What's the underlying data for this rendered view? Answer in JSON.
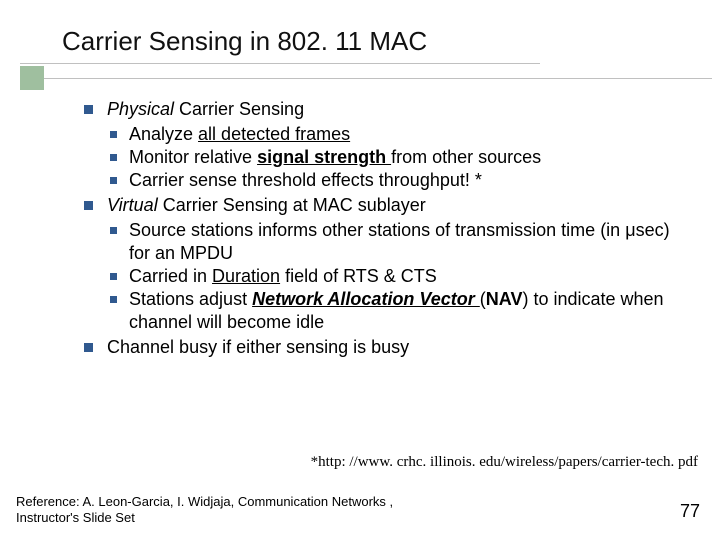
{
  "colors": {
    "accent_block": "#9fbf9f",
    "bullet": "#30598f",
    "rule": "#c0c0c0",
    "text": "#000000",
    "background": "#ffffff"
  },
  "title": "Carrier Sensing in 802. 11 MAC",
  "items": {
    "a": {
      "italic": "Physical",
      "rest": " Carrier Sensing"
    },
    "a1": {
      "pre": "Analyze ",
      "u": "all detected frames"
    },
    "a2": {
      "pre": "Monitor relative ",
      "bu": "signal strength ",
      "post": "from other sources"
    },
    "a3": "Carrier sense threshold effects throughput! *",
    "b": {
      "italic": "Virtual",
      "rest": " Carrier Sensing at MAC sublayer"
    },
    "b1": "Source stations informs other stations of transmission time (in μsec) for an MPDU",
    "b2": {
      "pre": "Carried in ",
      "u": "Duration",
      "post": " field of RTS & CTS"
    },
    "b3": {
      "pre": "Stations adjust ",
      "biu": "Network Allocation Vector ",
      "mid": "(",
      "b": "NAV",
      "post": ") to indicate when channel will become idle"
    },
    "c": "Channel busy if either sensing is busy"
  },
  "footnote": "*http: //www. crhc. illinois. edu/wireless/papers/carrier-tech. pdf",
  "reference": "Reference: A. Leon-Garcia, I. Widjaja, Communication Networks , Instructor's Slide Set",
  "page_number": "77"
}
